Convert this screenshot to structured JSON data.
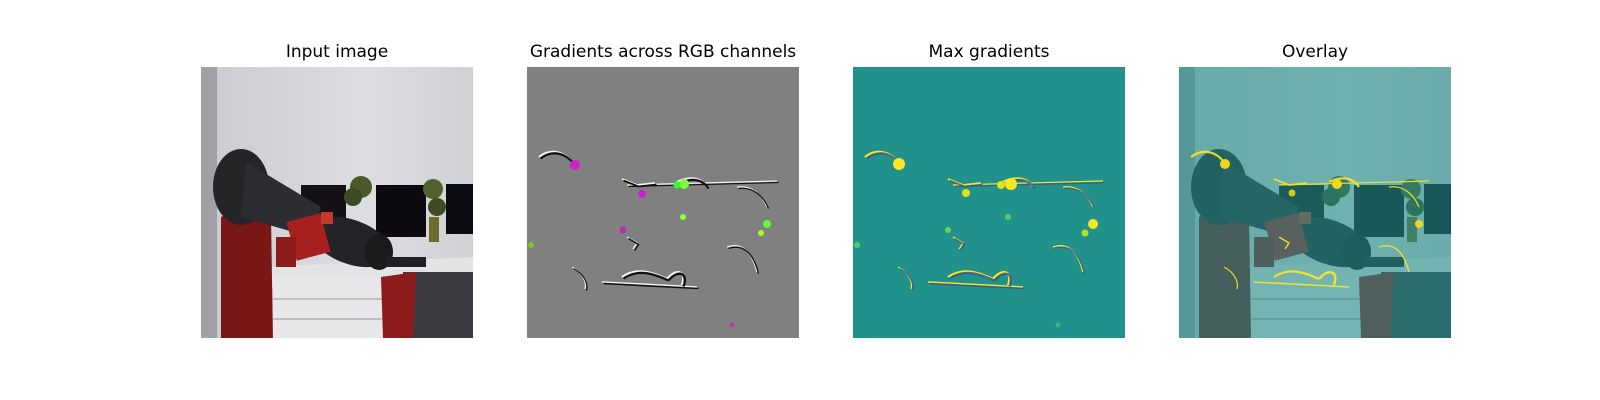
{
  "figure": {
    "panels": [
      {
        "title": "Input image",
        "image_icon": "robot-arm-office-photo"
      },
      {
        "title": "Gradients across RGB channels",
        "image_icon": "rgb-gradient-map"
      },
      {
        "title": "Max gradients",
        "image_icon": "max-gradient-heatmap"
      },
      {
        "title": "Overlay",
        "image_icon": "gradient-overlay-photo"
      }
    ],
    "colors": {
      "gray_background": "#808080",
      "heatmap_background": "#21918c",
      "heatmap_highlight": "#fde725",
      "overlay_tint": "#3e8a87",
      "robot_red": "#8b1a1a",
      "wall": "#d6d8dc"
    }
  }
}
